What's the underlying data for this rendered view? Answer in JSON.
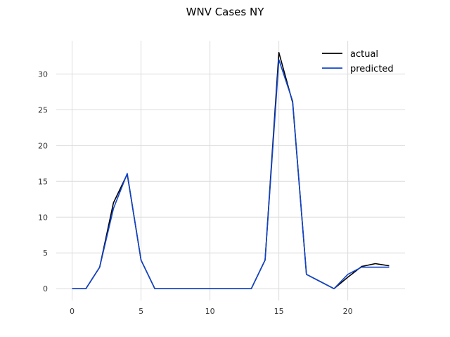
{
  "chart_data": {
    "type": "line",
    "title": "WNV Cases NY",
    "xlabel": "",
    "ylabel": "",
    "x": [
      0,
      1,
      2,
      3,
      4,
      5,
      6,
      7,
      8,
      9,
      10,
      11,
      12,
      13,
      14,
      15,
      16,
      17,
      18,
      19,
      20,
      21,
      22,
      23
    ],
    "xlim": [
      -1.15,
      24.15
    ],
    "ylim": [
      -1.65,
      34.65
    ],
    "xticks": [
      0,
      5,
      10,
      15,
      20
    ],
    "yticks": [
      0,
      5,
      10,
      15,
      20,
      25,
      30
    ],
    "grid": true,
    "legend_position": "top-right",
    "series": [
      {
        "name": "actual",
        "color": "#000000",
        "values": [
          0,
          0,
          3,
          12,
          16,
          4,
          0,
          0,
          0,
          0,
          0,
          0,
          0,
          0,
          4,
          33,
          26,
          2,
          1,
          0,
          1.6,
          3.1,
          3.5,
          3.2
        ]
      },
      {
        "name": "predicted",
        "color": "#1144cc",
        "values": [
          0,
          0,
          3,
          11.2,
          16.1,
          4,
          0,
          0,
          0,
          0,
          0,
          0,
          0,
          0,
          4,
          32,
          26.2,
          2,
          1,
          0,
          2,
          3,
          3,
          3
        ]
      }
    ]
  }
}
